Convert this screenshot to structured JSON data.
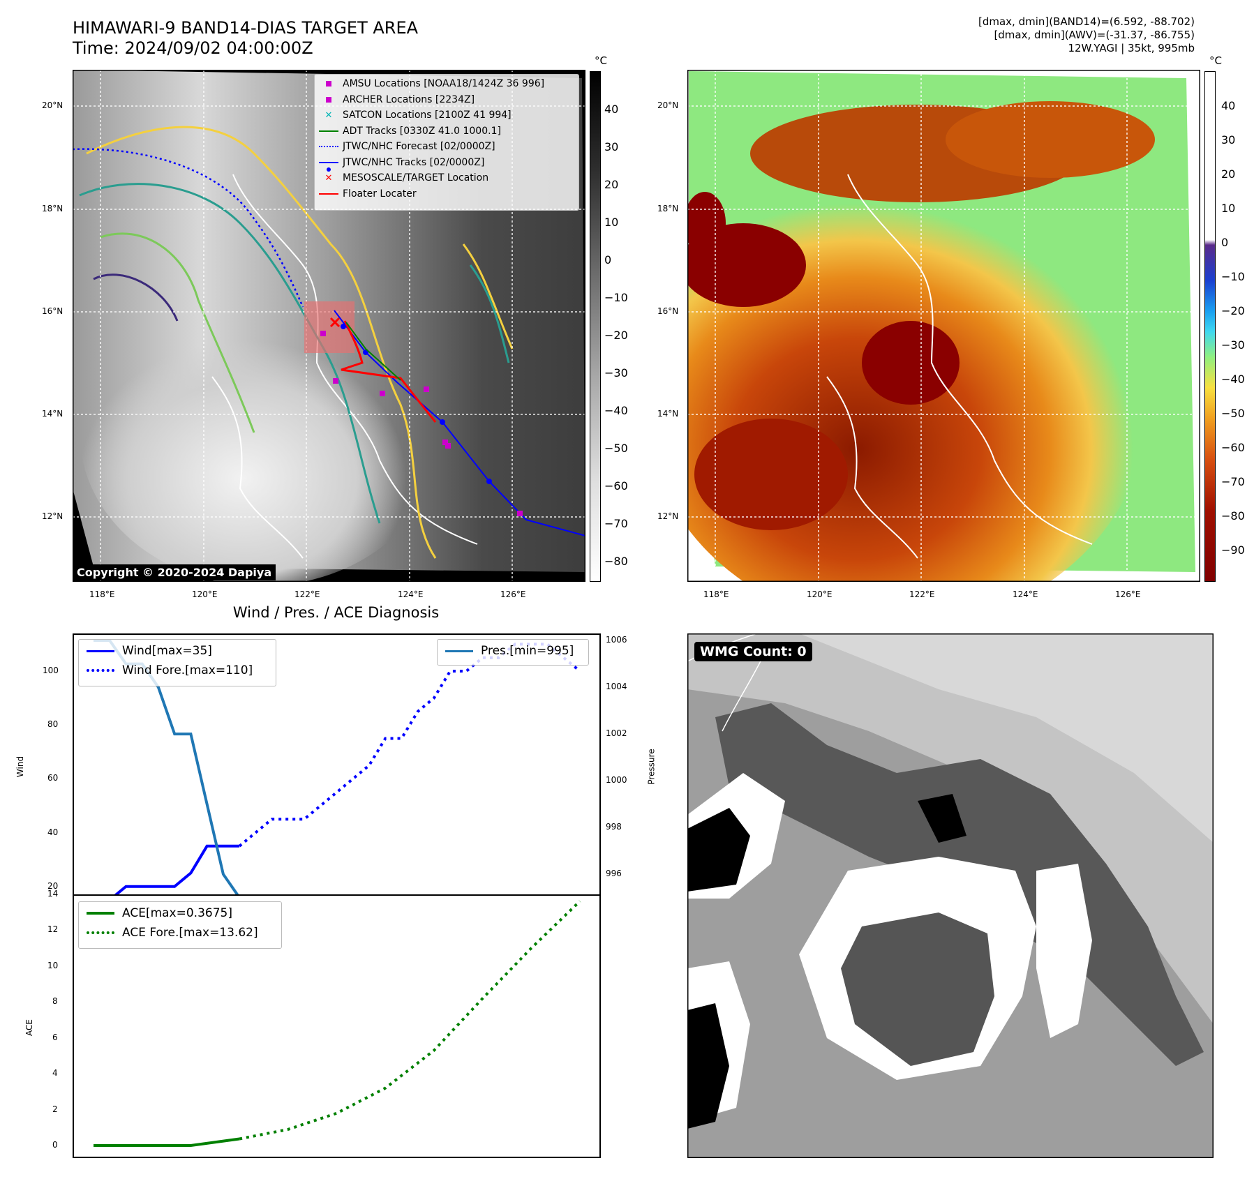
{
  "header": {
    "title_line1": "HIMAWARI-9 BAND14-DIAS TARGET AREA",
    "title_line2": "Time: 2024/09/02 04:00:00Z",
    "info_line1": "[dmax, dmin](BAND14)=(6.592, -88.702)",
    "info_line2": "[dmax, dmin](AWV)=(-31.37, -86.755)",
    "info_line3": "12W.YAGI | 35kt, 995mb"
  },
  "map_panel": {
    "unit": "°C",
    "lat_ticks": [
      "20°N",
      "18°N",
      "16°N",
      "14°N",
      "12°N"
    ],
    "lon_ticks": [
      "118°E",
      "120°E",
      "122°E",
      "124°E",
      "126°E"
    ],
    "colorbar_ticks": [
      "40",
      "30",
      "20",
      "10",
      "0",
      "−10",
      "−20",
      "−30",
      "−40",
      "−50",
      "−60",
      "−70",
      "−80"
    ],
    "copyright": "Copyright © 2020-2024 Dapiya",
    "legend": [
      {
        "label": "AMSU Locations [NOAA18/1424Z 36 996]",
        "color": "#cc00cc",
        "symbol": "square"
      },
      {
        "label": "ARCHER Locations [2234Z]",
        "color": "#cc00cc",
        "symbol": "square"
      },
      {
        "label": "SATCON Locations [2100Z 41 994]",
        "color": "#00b5b5",
        "symbol": "x"
      },
      {
        "label": "ADT Tracks [0330Z 41.0 1000.1]",
        "color": "#008000",
        "symbol": "line"
      },
      {
        "label": "JTWC/NHC Forecast [02/0000Z]",
        "color": "#0000ff",
        "symbol": "dotted"
      },
      {
        "label": "JTWC/NHC Tracks [02/0000Z]",
        "color": "#0000ff",
        "symbol": "line-dot"
      },
      {
        "label": "MESOSCALE/TARGET Location",
        "color": "#ff0000",
        "symbol": "x"
      },
      {
        "label": "Floater Locater",
        "color": "#ff0000",
        "symbol": "line"
      }
    ]
  },
  "awv_panel": {
    "unit": "°C",
    "lat_ticks": [
      "20°N",
      "18°N",
      "16°N",
      "14°N",
      "12°N"
    ],
    "lon_ticks": [
      "118°E",
      "120°E",
      "122°E",
      "124°E",
      "126°E"
    ],
    "colorbar_ticks": [
      "40",
      "30",
      "20",
      "10",
      "0",
      "−10",
      "−20",
      "−30",
      "−40",
      "−50",
      "−60",
      "−70",
      "−80",
      "−90"
    ]
  },
  "wmg_panel": {
    "label": "WMG Count: 0"
  },
  "chart_data": [
    {
      "type": "line",
      "title": "Wind / Pres. / ACE Diagnosis",
      "ylabel": "Wind",
      "y2label": "Pressure",
      "ylim": [
        15,
        114
      ],
      "y2lim": [
        994.9,
        1006.3
      ],
      "yticks": [
        20,
        40,
        60,
        80,
        100
      ],
      "y2ticks": [
        996,
        998,
        1000,
        1002,
        1004,
        1006
      ],
      "series": [
        {
          "name": "Wind[max=35]",
          "color": "#0000ff",
          "style": "solid",
          "x": [
            0,
            1,
            2,
            3,
            4,
            5,
            6,
            7,
            8,
            9
          ],
          "values": [
            15,
            15,
            20,
            20,
            20,
            20,
            25,
            35,
            35,
            35
          ]
        },
        {
          "name": "Wind Fore.[max=110]",
          "color": "#0000ff",
          "style": "dotted",
          "x": [
            9,
            10,
            11,
            12,
            13,
            14,
            15,
            16,
            17,
            18,
            19,
            20,
            21,
            22,
            23,
            24,
            25,
            26,
            27,
            28,
            29,
            30
          ],
          "values": [
            35,
            40,
            45,
            45,
            45,
            50,
            55,
            60,
            65,
            75,
            75,
            85,
            90,
            100,
            100,
            105,
            105,
            110,
            110,
            110,
            105,
            100
          ]
        },
        {
          "name": "Pres.[min=995]",
          "color": "#1f77b4",
          "style": "solid",
          "axis": "y2",
          "x": [
            0,
            1,
            2,
            3,
            4,
            5,
            6,
            7,
            8,
            9
          ],
          "values": [
            1006,
            1006,
            1005,
            1005,
            1004,
            1002,
            1002,
            999,
            996,
            995
          ]
        }
      ]
    },
    {
      "type": "line",
      "ylabel": "ACE",
      "ylim": [
        -0.7,
        14
      ],
      "yticks": [
        0,
        2,
        4,
        6,
        8,
        10,
        12,
        14
      ],
      "series": [
        {
          "name": "ACE[max=0.3675]",
          "color": "#008000",
          "style": "solid",
          "x": [
            0,
            2,
            4,
            6,
            9
          ],
          "values": [
            0,
            0,
            0,
            0,
            0.37
          ]
        },
        {
          "name": "ACE Fore.[max=13.62]",
          "color": "#008000",
          "style": "dotted",
          "x": [
            9,
            12,
            15,
            18,
            21,
            24,
            27,
            30
          ],
          "values": [
            0.37,
            0.9,
            1.8,
            3.2,
            5.3,
            8.2,
            11.0,
            13.62
          ]
        }
      ]
    }
  ]
}
